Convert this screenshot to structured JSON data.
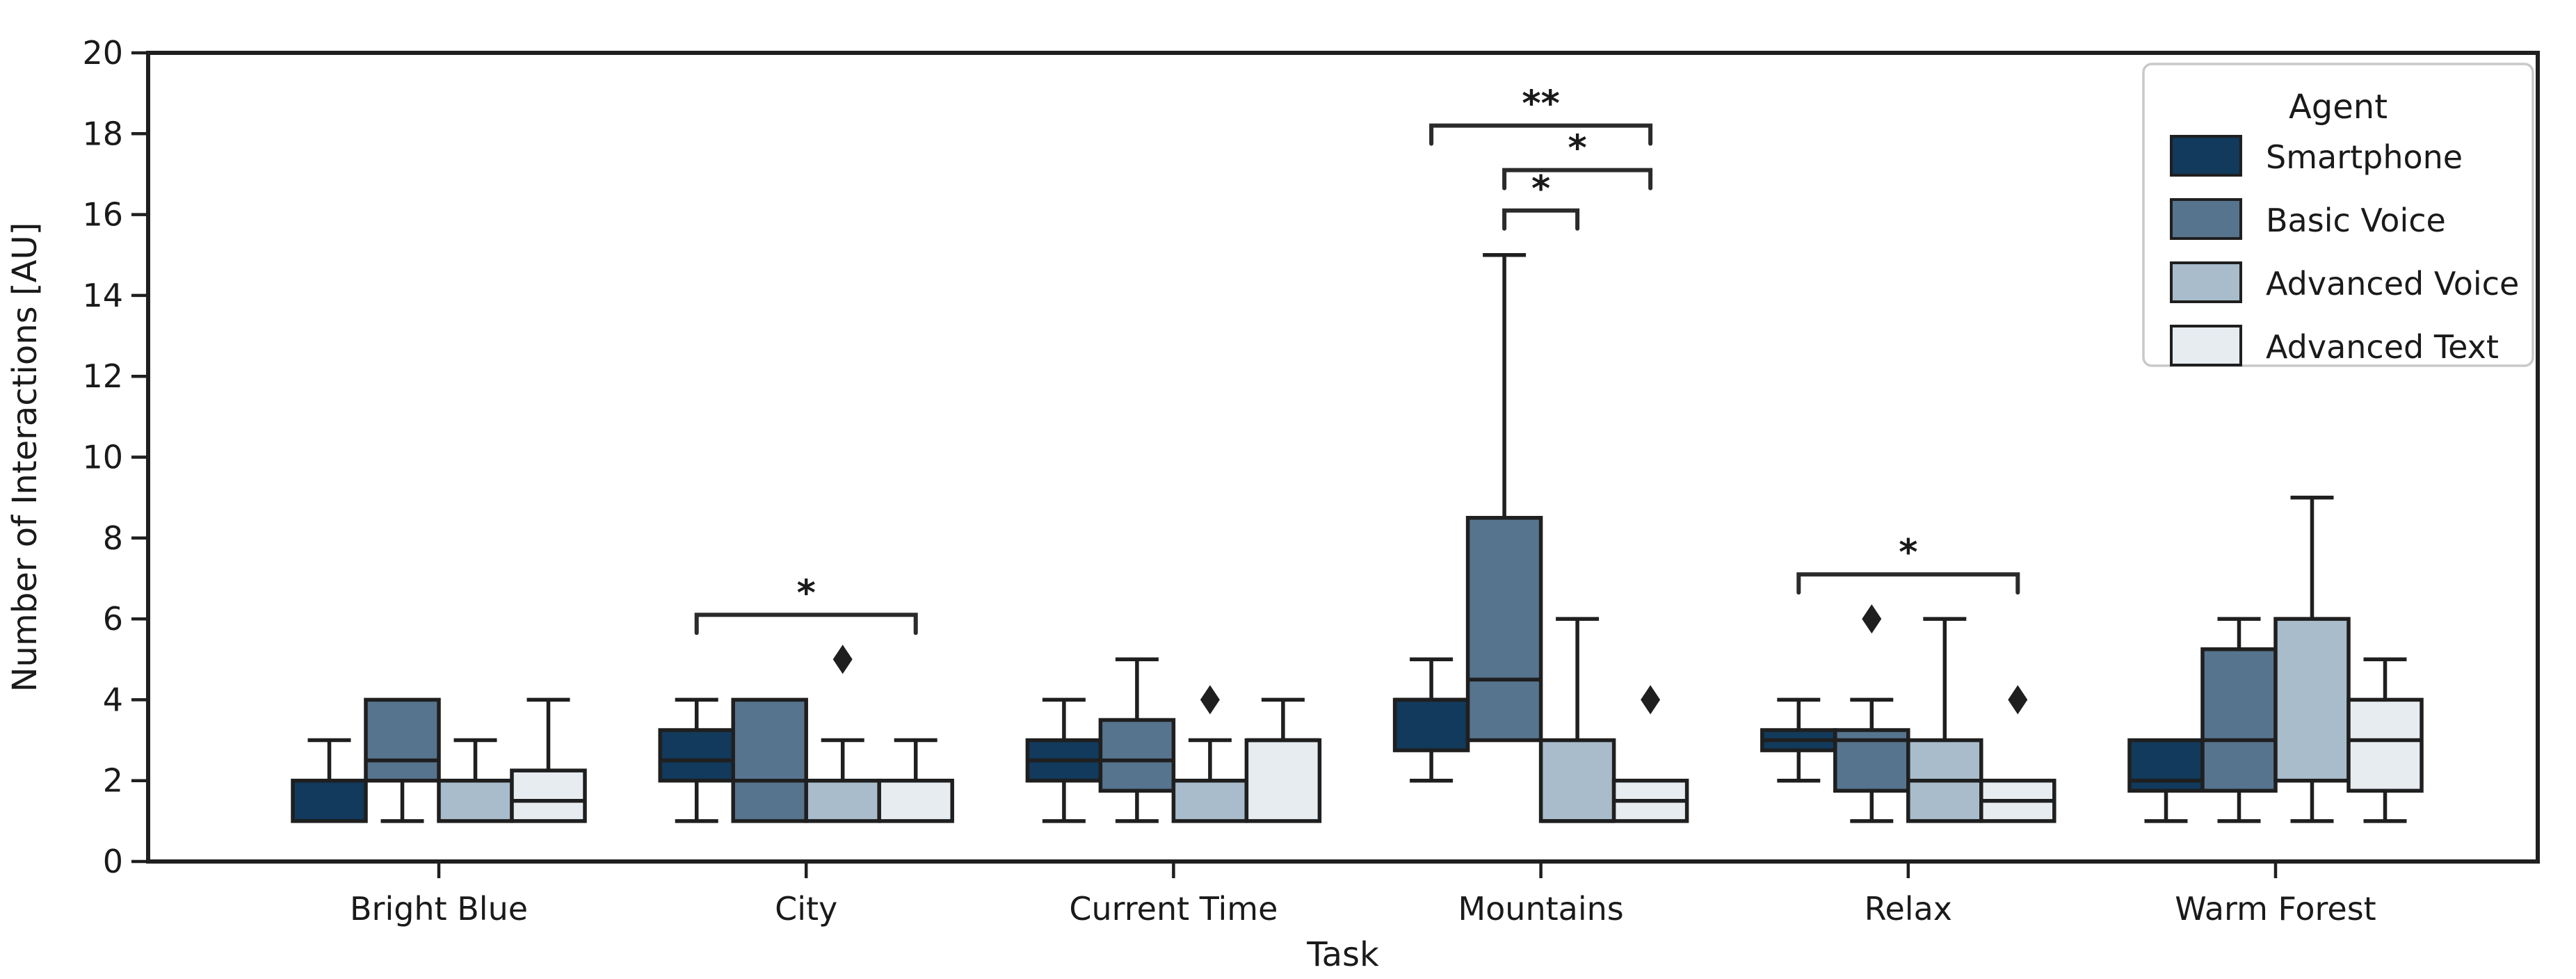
{
  "chart_data": {
    "type": "grouped_boxplot",
    "title": "",
    "xlabel": "Task",
    "ylabel": "Number of Interactions [AU]",
    "ylim": [
      0,
      20
    ],
    "yticks": [
      0,
      2,
      4,
      6,
      8,
      10,
      12,
      14,
      16,
      18,
      20
    ],
    "grid": false,
    "categories": [
      "Bright Blue",
      "City",
      "Current Time",
      "Mountains",
      "Relax",
      "Warm Forest"
    ],
    "legend": {
      "title": "Agent",
      "position": "upper right"
    },
    "agents": [
      {
        "label": "Smartphone",
        "color": "#113a5c"
      },
      {
        "label": "Basic Voice",
        "color": "#57748e"
      },
      {
        "label": "Advanced Voice",
        "color": "#a8bccb"
      },
      {
        "label": "Advanced Text",
        "color": "#e7ecf1"
      }
    ],
    "groups": [
      {
        "task": "Bright Blue",
        "boxes": [
          {
            "agent": "Smartphone",
            "whislo": 1,
            "q1": 1,
            "med": 2,
            "q3": 2,
            "whishi": 3,
            "outliers": []
          },
          {
            "agent": "Basic Voice",
            "whislo": 1,
            "q1": 2,
            "med": 2.5,
            "q3": 4,
            "whishi": 4,
            "outliers": []
          },
          {
            "agent": "Advanced Voice",
            "whislo": 1,
            "q1": 1,
            "med": 2,
            "q3": 2,
            "whishi": 3,
            "outliers": []
          },
          {
            "agent": "Advanced Text",
            "whislo": 1,
            "q1": 1,
            "med": 1.5,
            "q3": 2.25,
            "whishi": 4,
            "outliers": []
          }
        ]
      },
      {
        "task": "City",
        "boxes": [
          {
            "agent": "Smartphone",
            "whislo": 1,
            "q1": 2,
            "med": 2.5,
            "q3": 3.25,
            "whishi": 4,
            "outliers": []
          },
          {
            "agent": "Basic Voice",
            "whislo": 1,
            "q1": 1,
            "med": 2,
            "q3": 4,
            "whishi": 4,
            "outliers": []
          },
          {
            "agent": "Advanced Voice",
            "whislo": 1,
            "q1": 1,
            "med": 2,
            "q3": 2,
            "whishi": 3,
            "outliers": [
              5
            ]
          },
          {
            "agent": "Advanced Text",
            "whislo": 1,
            "q1": 1,
            "med": 2,
            "q3": 2,
            "whishi": 3,
            "outliers": []
          }
        ]
      },
      {
        "task": "Current Time",
        "boxes": [
          {
            "agent": "Smartphone",
            "whislo": 1,
            "q1": 2,
            "med": 2.5,
            "q3": 3,
            "whishi": 4,
            "outliers": []
          },
          {
            "agent": "Basic Voice",
            "whislo": 1,
            "q1": 1.75,
            "med": 2.5,
            "q3": 3.5,
            "whishi": 5,
            "outliers": []
          },
          {
            "agent": "Advanced Voice",
            "whislo": 1,
            "q1": 1,
            "med": 2,
            "q3": 2,
            "whishi": 3,
            "outliers": [
              4
            ]
          },
          {
            "agent": "Advanced Text",
            "whislo": 1,
            "q1": 1,
            "med": 3,
            "q3": 3,
            "whishi": 4,
            "outliers": []
          }
        ]
      },
      {
        "task": "Mountains",
        "boxes": [
          {
            "agent": "Smartphone",
            "whislo": 2,
            "q1": 2.75,
            "med": 4,
            "q3": 4,
            "whishi": 5,
            "outliers": []
          },
          {
            "agent": "Basic Voice",
            "whislo": 3,
            "q1": 3,
            "med": 4.5,
            "q3": 8.5,
            "whishi": 15,
            "outliers": []
          },
          {
            "agent": "Advanced Voice",
            "whislo": 1,
            "q1": 1,
            "med": 1,
            "q3": 3,
            "whishi": 6,
            "outliers": []
          },
          {
            "agent": "Advanced Text",
            "whislo": 1,
            "q1": 1,
            "med": 1.5,
            "q3": 2,
            "whishi": 2,
            "outliers": [
              4
            ]
          }
        ]
      },
      {
        "task": "Relax",
        "boxes": [
          {
            "agent": "Smartphone",
            "whislo": 2,
            "q1": 2.75,
            "med": 3,
            "q3": 3.25,
            "whishi": 4,
            "outliers": []
          },
          {
            "agent": "Basic Voice",
            "whislo": 1,
            "q1": 1.75,
            "med": 3,
            "q3": 3.25,
            "whishi": 4,
            "outliers": [
              6
            ]
          },
          {
            "agent": "Advanced Voice",
            "whislo": 1,
            "q1": 1,
            "med": 2,
            "q3": 3,
            "whishi": 6,
            "outliers": []
          },
          {
            "agent": "Advanced Text",
            "whislo": 1,
            "q1": 1,
            "med": 1.5,
            "q3": 2,
            "whishi": 2,
            "outliers": [
              4
            ]
          }
        ]
      },
      {
        "task": "Warm Forest",
        "boxes": [
          {
            "agent": "Smartphone",
            "whislo": 1,
            "q1": 1.75,
            "med": 2,
            "q3": 3,
            "whishi": 3,
            "outliers": []
          },
          {
            "agent": "Basic Voice",
            "whislo": 1,
            "q1": 1.75,
            "med": 3,
            "q3": 5.25,
            "whishi": 6,
            "outliers": []
          },
          {
            "agent": "Advanced Voice",
            "whislo": 1,
            "q1": 2,
            "med": 2,
            "q3": 6,
            "whishi": 9,
            "outliers": []
          },
          {
            "agent": "Advanced Text",
            "whislo": 1,
            "q1": 1.75,
            "med": 3,
            "q3": 4,
            "whishi": 5,
            "outliers": []
          }
        ]
      }
    ],
    "significance_brackets": [
      {
        "task_index": 1,
        "from_agent": 0,
        "to_agent": 3,
        "y": 6.1,
        "label": "*"
      },
      {
        "task_index": 3,
        "from_agent": 0,
        "to_agent": 3,
        "y": 18.2,
        "label": "**"
      },
      {
        "task_index": 3,
        "from_agent": 1,
        "to_agent": 3,
        "y": 17.1,
        "label": "*"
      },
      {
        "task_index": 3,
        "from_agent": 1,
        "to_agent": 2,
        "y": 16.1,
        "label": "*"
      },
      {
        "task_index": 4,
        "from_agent": 0,
        "to_agent": 3,
        "y": 7.1,
        "label": "*"
      }
    ],
    "styles": {
      "edge_color": "#1f1f1f",
      "text_color": "#1a1a1a",
      "outlier_color": "#1f1f1f",
      "bracket_color": "#2b2b2b",
      "legend_border_color": "#c9c9c9",
      "background": "#ffffff"
    }
  }
}
